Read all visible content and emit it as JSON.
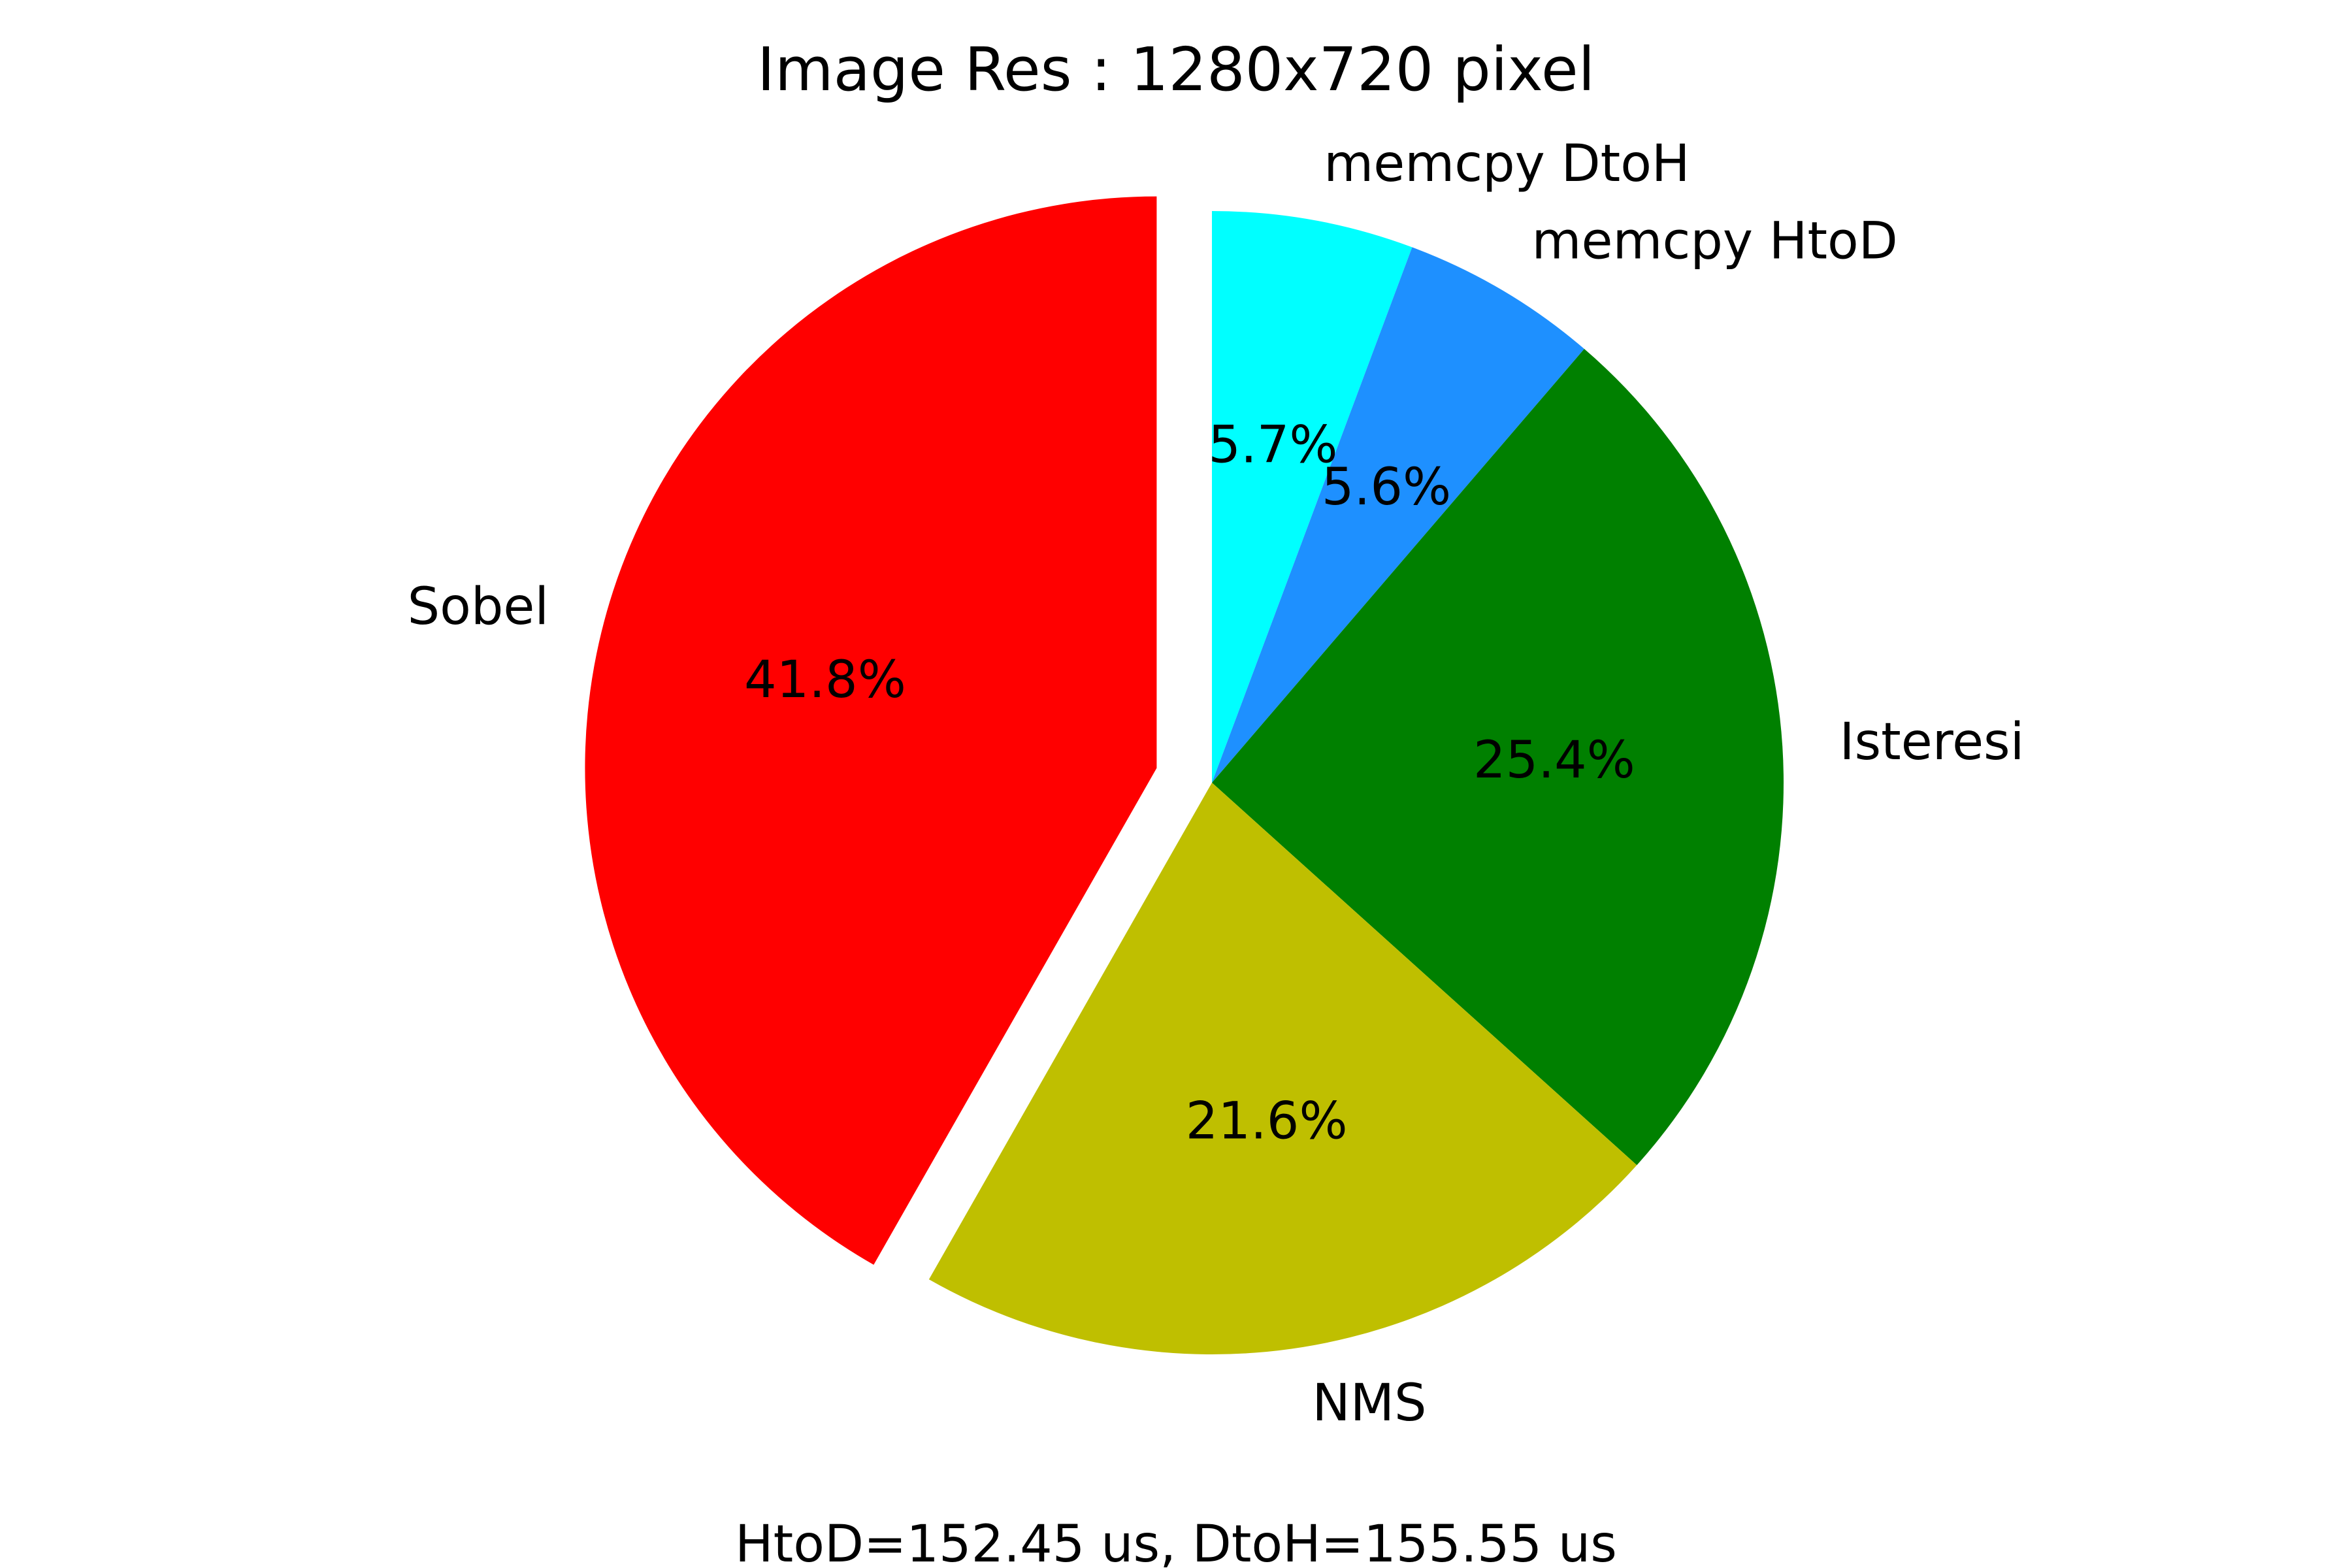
{
  "chart_data": {
    "type": "pie",
    "title": "Image Res : 1280x720 pixel",
    "caption": "HtoD=152.45 us, DtoH=155.55 us",
    "start_angle_deg": 90,
    "direction": "clockwise",
    "slices": [
      {
        "label": "memcpy DtoH",
        "value": 5.7,
        "pct_label": "5.7%",
        "color": "#00ffff",
        "explode": false
      },
      {
        "label": "memcpy HtoD",
        "value": 5.6,
        "pct_label": "5.6%",
        "color": "#1e90ff",
        "explode": false
      },
      {
        "label": "Isteresi",
        "value": 25.4,
        "pct_label": "25.4%",
        "color": "#008000",
        "explode": false
      },
      {
        "label": "NMS",
        "value": 21.6,
        "pct_label": "21.6%",
        "color": "#bfbf00",
        "explode": false
      },
      {
        "label": "Sobel",
        "value": 41.8,
        "pct_label": "41.8%",
        "color": "#ff0000",
        "explode": true
      }
    ]
  }
}
